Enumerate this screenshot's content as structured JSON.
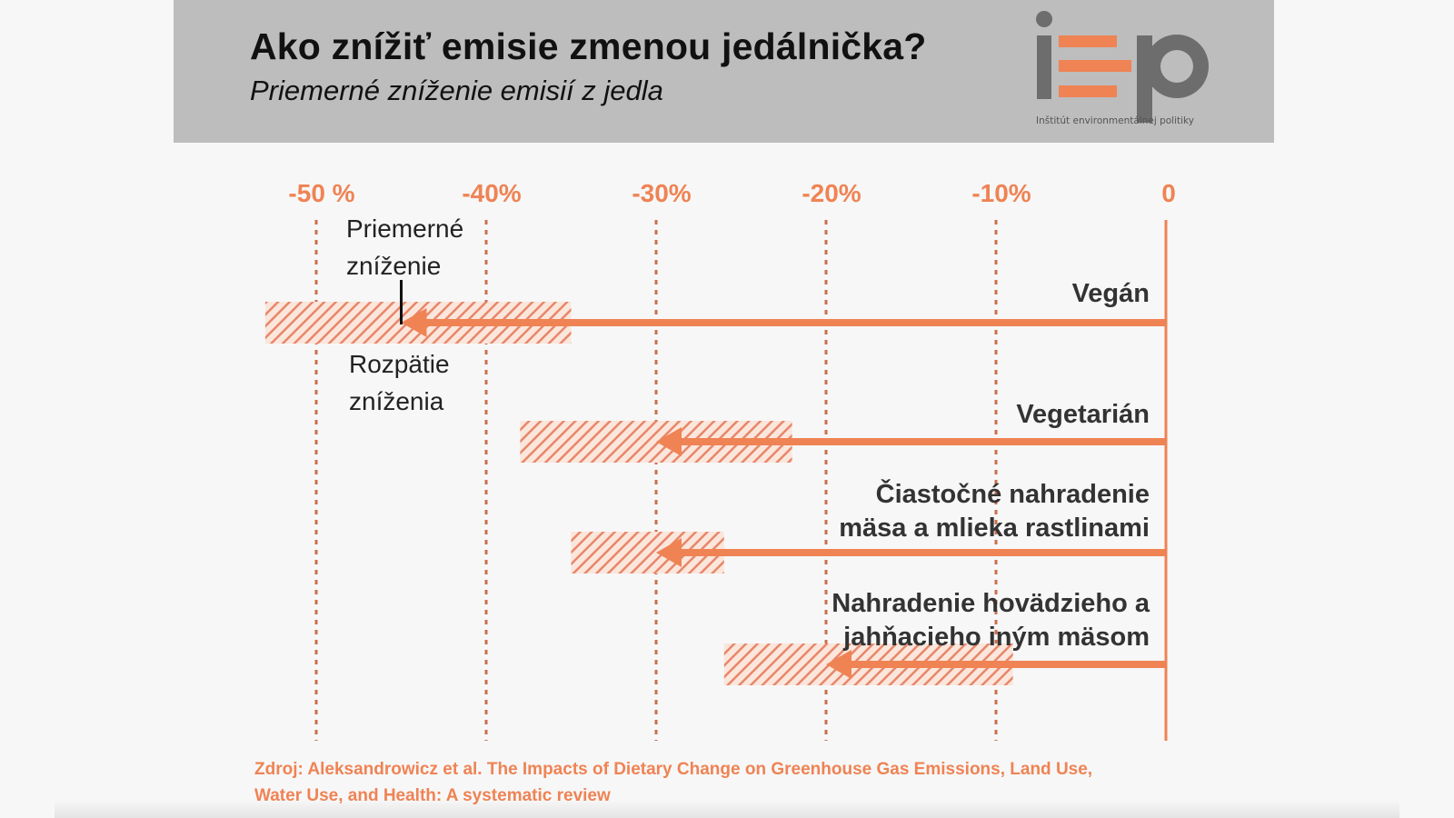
{
  "header": {
    "title": "Ako znížiť emisie zmenou jedálnička?",
    "subtitle": "Priemerné zníženie emisií z jedla",
    "logo_text": "iep",
    "logo_subtitle": "Inštitút environmentálnej politiky"
  },
  "colors": {
    "accent": "#ef8354",
    "dark_accent": "#c9704e",
    "header_bg": "#bdbdbd",
    "logo_grey": "#6d6d6d"
  },
  "chart_data": {
    "type": "bar",
    "orientation": "horizontal",
    "unit": "%",
    "xlim": [
      -50,
      0
    ],
    "x_ticks": [
      {
        "value": -50,
        "label": "-50 %"
      },
      {
        "value": -40,
        "label": "-40%"
      },
      {
        "value": -30,
        "label": "-30%"
      },
      {
        "value": -20,
        "label": "-20%"
      },
      {
        "value": -10,
        "label": "-10%"
      }
    ],
    "zero_label": "0",
    "grid": true,
    "series": [
      {
        "label": "Vegán",
        "average": -45,
        "range": [
          -53,
          -35
        ]
      },
      {
        "label": "Vegetarián",
        "average": -30,
        "range": [
          -38,
          -22
        ]
      },
      {
        "label": "Čiastočné nahradenie mäsa a mlieka rastlinami",
        "label_lines": [
          "Čiastočné nahradenie",
          "mäsa a mlieka rastlinami"
        ],
        "average": -30,
        "range": [
          -35,
          -26
        ]
      },
      {
        "label": "Nahradenie hovädzieho a jahňacieho iným mäsom",
        "label_lines": [
          "Nahradenie hovädzieho a",
          "jahňacieho iným mäsom"
        ],
        "average": -20,
        "range": [
          -26,
          -9
        ]
      }
    ],
    "annotations": {
      "average_label": [
        "Priemerné",
        "zníženie"
      ],
      "range_label": [
        "Rozpätie",
        "zníženia"
      ]
    }
  },
  "source": {
    "line1": "Zdroj: Aleksandrowicz et al. The Impacts of Dietary Change on Greenhouse Gas Emissions, Land Use,",
    "line2": "Water Use, and Health: A systematic review"
  }
}
